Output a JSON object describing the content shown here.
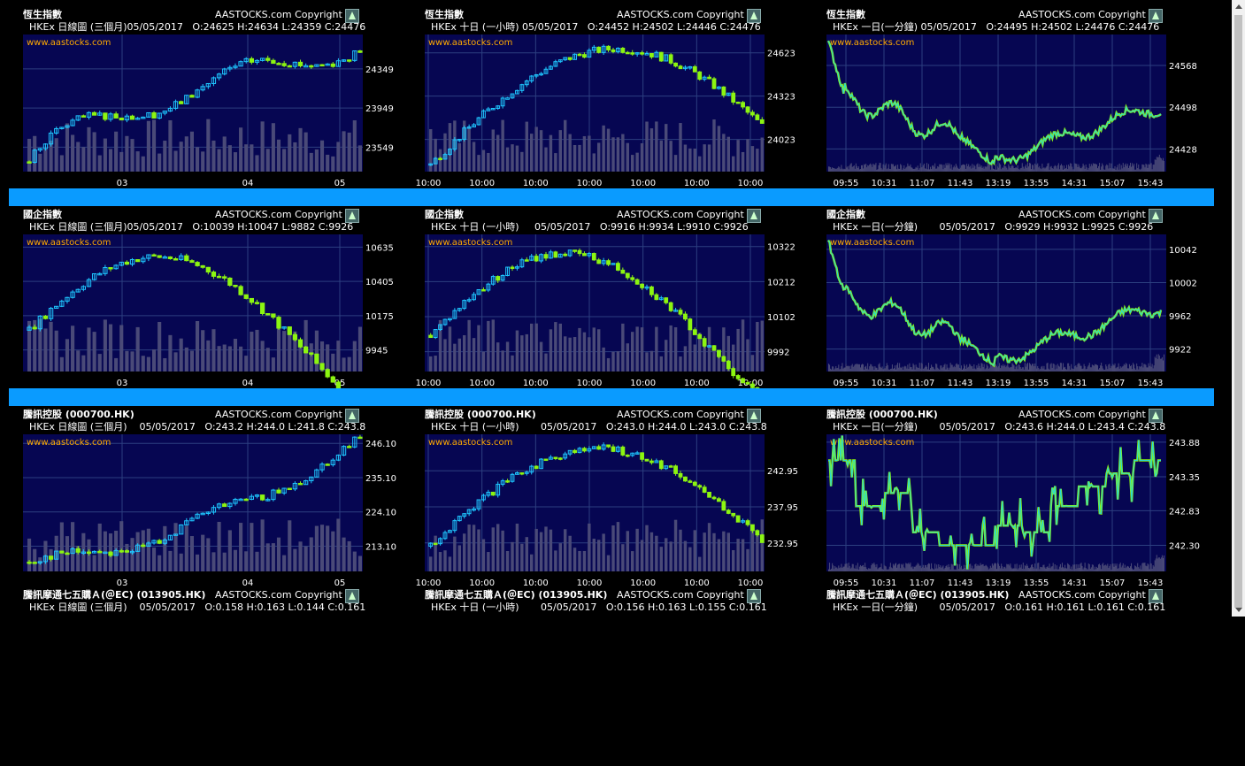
{
  "colors": {
    "plot_bg": "#060652",
    "grid": "#2c3f80",
    "up": "#1ec6ff",
    "down": "#8cf511",
    "line": "#28d8d8",
    "line_alt": "#8cf511",
    "volume": "#4a4a78",
    "watermark": "#ffaa00",
    "separator": "#0a9bff"
  },
  "copyright": "AASTOCKS.com Copyright ©",
  "watermark": "www.aastocks.com",
  "panels": [
    {
      "title": "恆生指數",
      "sub": "  HKEx 日線圖 (三個月)05/05/2017   O:24625 H:24634 L:24359 C:24476",
      "chart_data": {
        "type": "candlestick",
        "yticks": [
          24349,
          23949,
          23549
        ],
        "ylim": [
          23300,
          24700
        ],
        "xticks": [
          "03",
          "04",
          "05"
        ],
        "candles": []
      }
    },
    {
      "title": "恆生指數",
      "sub": "  HKEx 十日 (一小時) 05/05/2017   O:24452 H:24502 L:24446 C:24476",
      "chart_data": {
        "type": "candlestick",
        "yticks": [
          24623,
          24323,
          24023
        ],
        "ylim": [
          23800,
          24750
        ],
        "xticks": [
          "10:00",
          "10:00",
          "10:00",
          "10:00",
          "10:00",
          "10:00",
          "10:00"
        ],
        "candles": []
      }
    },
    {
      "title": "恆生指數",
      "sub": "  HKEx 一日(一分鐘) 05/05/2017   O:24495 H:24502 L:24476 C:24476",
      "chart_data": {
        "type": "line",
        "yticks": [
          24568,
          24498,
          24428
        ],
        "ylim": [
          24390,
          24620
        ],
        "xticks": [
          "09:55",
          "10:31",
          "11:07",
          "11:43",
          "13:19",
          "13:55",
          "14:31",
          "15:07",
          "15:43"
        ]
      }
    },
    {
      "title": "國企指數",
      "sub": "  HKEx 日線圖 (三個月)05/05/2017   O:10039 H:10047 L:9882 C:9926",
      "chart_data": {
        "type": "candlestick",
        "yticks": [
          10635,
          10405,
          10175,
          9945
        ],
        "ylim": [
          9800,
          10720
        ],
        "xticks": [
          "03",
          "04",
          "05"
        ]
      }
    },
    {
      "title": "國企指數",
      "sub": "  HKEx 十日 (一小時)     05/05/2017   O:9916 H:9934 L:9910 C:9926",
      "chart_data": {
        "type": "candlestick",
        "yticks": [
          10322,
          10212,
          10102,
          9992
        ],
        "ylim": [
          9930,
          10360
        ],
        "xticks": [
          "10:00",
          "10:00",
          "10:00",
          "10:00",
          "10:00",
          "10:00",
          "10:00"
        ]
      }
    },
    {
      "title": "國企指數",
      "sub": "  HKEx 一日(一分鐘)       05/05/2017   O:9929 H:9932 L:9925 C:9926",
      "chart_data": {
        "type": "line",
        "yticks": [
          10042,
          10002,
          9962,
          9922
        ],
        "ylim": [
          9895,
          10060
        ],
        "xticks": [
          "09:55",
          "10:31",
          "11:07",
          "11:43",
          "13:19",
          "13:55",
          "14:31",
          "15:07",
          "15:43"
        ]
      }
    },
    {
      "title": "騰訊控股 (000700.HK)",
      "sub": "  HKEx 日線圖 (三個月)    05/05/2017   O:243.2 H:244.0 L:241.8 C:243.8",
      "chart_data": {
        "type": "candlestick",
        "yticks": [
          "246.10",
          "235.10",
          "224.10",
          "213.10"
        ],
        "ylim": [
          205,
          249
        ],
        "xticks": [
          "03",
          "04",
          "05"
        ]
      }
    },
    {
      "title": "騰訊控股 (000700.HK)",
      "sub": "  HKEx 十日 (一小時)       05/05/2017   O:243.0 H:244.0 L:243.0 C:243.8",
      "chart_data": {
        "type": "candlestick",
        "yticks": [
          "242.95",
          "237.95",
          "232.95"
        ],
        "ylim": [
          229,
          248
        ],
        "xticks": [
          "10:00",
          "10:00",
          "10:00",
          "10:00",
          "10:00",
          "10:00",
          "10:00"
        ]
      }
    },
    {
      "title": "騰訊控股 (000700.HK)",
      "sub": "  HKEx 一日(一分鐘)       05/05/2017   O:243.6 H:244.0 L:243.4 C:243.8",
      "chart_data": {
        "type": "step",
        "yticks": [
          "243.88",
          "243.35",
          "242.83",
          "242.30"
        ],
        "ylim": [
          241.9,
          244.0
        ],
        "xticks": [
          "09:55",
          "10:31",
          "11:07",
          "11:43",
          "13:19",
          "13:55",
          "14:31",
          "15:07",
          "15:43"
        ]
      }
    },
    {
      "title": "騰訊摩通七五購Ａ(＠EC) (013905.HK)",
      "sub": "  HKEx 日線圖 (三個月)    05/05/2017   O:0.158 H:0.163 L:0.144 C:0.161"
    },
    {
      "title": "騰訊摩通七五購Ａ(＠EC) (013905.HK)",
      "sub": "  HKEx 十日 (一小時)       05/05/2017   O:0.156 H:0.163 L:0.155 C:0.161"
    },
    {
      "title": "騰訊摩通七五購Ａ(＠EC) (013905.HK)",
      "sub": "  HKEx 一日(一分鐘)       05/05/2017   O:0.161 H:0.161 L:0.161 C:0.161"
    }
  ]
}
